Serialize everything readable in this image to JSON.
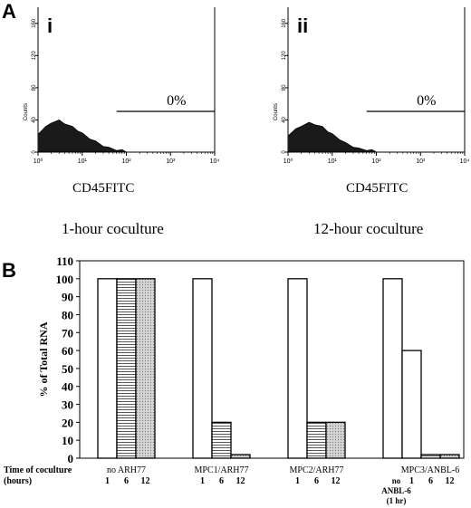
{
  "panel_a": {
    "letter": "A",
    "histograms": [
      {
        "roman": "i",
        "y_axis_label": "Counts",
        "y_ticks": [
          "0",
          "40",
          "80",
          "120",
          "160"
        ],
        "x_ticks": [
          "10⁰",
          "10¹",
          "10²",
          "10³",
          "10⁴"
        ],
        "gate_percent": "0%",
        "marker_label": "CD45FITC",
        "caption": "1-hour coculture"
      },
      {
        "roman": "ii",
        "y_axis_label": "Counts",
        "y_ticks": [
          "0",
          "40",
          "80",
          "120",
          "160"
        ],
        "x_ticks": [
          "10⁰",
          "10¹",
          "10²",
          "10³",
          "10⁴"
        ],
        "gate_percent": "0%",
        "marker_label": "CD45FITC",
        "caption": "12-hour coculture"
      }
    ]
  },
  "panel_b": {
    "letter": "B",
    "row_label_line1": "Time of coculture",
    "row_label_line2": "(hours)"
  },
  "chart_data": [
    {
      "type": "area",
      "title": "",
      "xlabel": "CD45FITC",
      "ylabel": "Counts",
      "x_scale": "log",
      "xlim": [
        1,
        10000
      ],
      "ylim": [
        0,
        180
      ],
      "x": [
        1,
        1.5,
        2,
        3,
        4,
        6,
        8,
        10,
        15,
        20,
        30,
        40,
        60,
        80,
        100
      ],
      "y": [
        22,
        30,
        36,
        38,
        35,
        30,
        26,
        22,
        16,
        12,
        7,
        4,
        2,
        1,
        0
      ],
      "gate": {
        "from": 60,
        "to": 10000,
        "label": "0%"
      }
    },
    {
      "type": "area",
      "title": "",
      "xlabel": "CD45FITC",
      "ylabel": "Counts",
      "x_scale": "log",
      "xlim": [
        1,
        10000
      ],
      "ylim": [
        0,
        180
      ],
      "x": [
        1,
        1.5,
        2,
        3,
        4,
        6,
        8,
        10,
        15,
        20,
        30,
        40,
        60,
        80,
        100
      ],
      "y": [
        20,
        27,
        32,
        35,
        34,
        30,
        25,
        21,
        15,
        10,
        6,
        3,
        2,
        1,
        0
      ],
      "gate": {
        "from": 60,
        "to": 10000,
        "label": "0%"
      }
    },
    {
      "type": "bar",
      "title": "",
      "xlabel": "",
      "ylabel": "% of Total RNA",
      "ylim": [
        0,
        110
      ],
      "y_ticks": [
        0,
        10,
        20,
        30,
        40,
        50,
        60,
        70,
        80,
        90,
        100,
        110
      ],
      "groups": [
        {
          "name": "no ARH77",
          "times": [
            "1",
            "6",
            "12"
          ],
          "values": [
            100,
            100,
            100
          ]
        },
        {
          "name": "MPC1/ARH77",
          "times": [
            "1",
            "6",
            "12"
          ],
          "values": [
            100,
            20,
            2
          ]
        },
        {
          "name": "MPC2/ARH77",
          "times": [
            "1",
            "6",
            "12"
          ],
          "values": [
            100,
            20,
            20
          ]
        },
        {
          "name": "MPC3/ANBL-6",
          "times": [
            "no ANBL-6 (1 hr)",
            "1",
            "6",
            "12"
          ],
          "values": [
            100,
            60,
            2,
            2
          ]
        }
      ],
      "bar_styles": {
        "1": "white",
        "6": "horizontal-stripes",
        "12": "dotted-gray"
      }
    }
  ]
}
